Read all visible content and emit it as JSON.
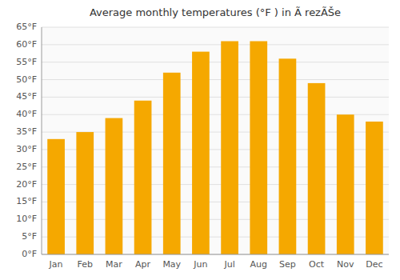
{
  "chart_data": {
    "type": "bar",
    "title": "Average monthly temperatures (°F ) in Ã rezÃŠe",
    "categories": [
      "Jan",
      "Feb",
      "Mar",
      "Apr",
      "May",
      "Jun",
      "Jul",
      "Aug",
      "Sep",
      "Oct",
      "Nov",
      "Dec"
    ],
    "values": [
      33,
      35,
      39,
      44,
      52,
      58,
      61,
      61,
      56,
      49,
      40,
      38
    ],
    "color": "#F5A800",
    "ylim": [
      0,
      65
    ],
    "yticks": [
      {
        "value": 0,
        "label": "0°F"
      },
      {
        "value": 5,
        "label": "5°F"
      },
      {
        "value": 10,
        "label": "10°F"
      },
      {
        "value": 15,
        "label": "15°F"
      },
      {
        "value": 20,
        "label": "20°F"
      },
      {
        "value": 25,
        "label": "25°F"
      },
      {
        "value": 30,
        "label": "30°F"
      },
      {
        "value": 35,
        "label": "35°F"
      },
      {
        "value": 40,
        "label": "40°F"
      },
      {
        "value": 45,
        "label": "45°F"
      },
      {
        "value": 50,
        "label": "50°F"
      },
      {
        "value": 55,
        "label": "55°F"
      },
      {
        "value": 60,
        "label": "60°F"
      },
      {
        "value": 65,
        "label": "65°F"
      }
    ],
    "grid": true
  }
}
